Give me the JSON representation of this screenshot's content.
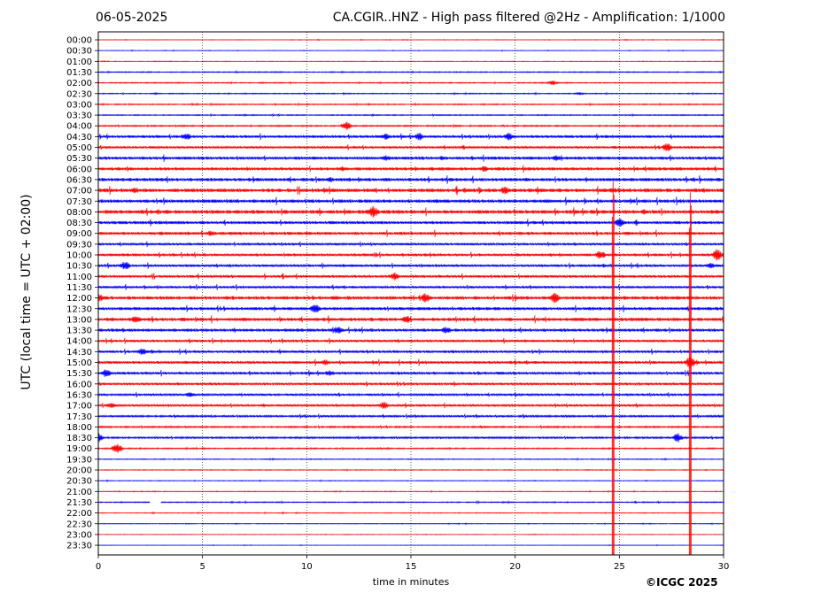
{
  "header": {
    "date": "06-05-2025",
    "title": "CA.CGIR..HNZ - High pass filtered @2Hz - Amplification: 1/1000"
  },
  "footer": {
    "copyright": "©ICGC 2025"
  },
  "colors": {
    "red_trace": "#ff0000",
    "blue_trace": "#0000ff",
    "frame": "#000000",
    "grid": "#000000"
  },
  "chart_data": {
    "type": "line",
    "title": "CA.CGIR..HNZ - High pass filtered @2Hz - Amplification: 1/1000",
    "xlabel": "time in minutes",
    "ylabel": "UTC (local time = UTC + 02:00)",
    "xlim": [
      0,
      30
    ],
    "x_ticks": [
      0,
      5,
      10,
      15,
      20,
      25,
      30
    ],
    "x_tick_labels": [
      "0",
      "5",
      "10",
      "15",
      "20",
      "25",
      "30"
    ],
    "vertical_gridlines": [
      5,
      10,
      15,
      20,
      25
    ],
    "grid": "vertical dotted",
    "row_labels": [
      "00:00",
      "00:30",
      "01:00",
      "01:30",
      "02:00",
      "02:30",
      "03:00",
      "03:30",
      "04:00",
      "04:30",
      "05:00",
      "05:30",
      "06:00",
      "06:30",
      "07:00",
      "07:30",
      "08:00",
      "08:30",
      "09:00",
      "09:30",
      "10:00",
      "10:30",
      "11:00",
      "11:30",
      "12:00",
      "12:30",
      "13:00",
      "13:30",
      "14:00",
      "14:30",
      "15:00",
      "15:30",
      "16:00",
      "16:30",
      "17:00",
      "17:30",
      "18:00",
      "18:30",
      "19:00",
      "19:30",
      "20:00",
      "20:30",
      "21:00",
      "21:30",
      "22:00",
      "22:30",
      "23:00",
      "23:30"
    ],
    "row_colors": [
      "red",
      "blue"
    ],
    "noise_level": [
      0.3,
      0.3,
      0.3,
      0.6,
      0.6,
      0.6,
      0.6,
      0.6,
      0.8,
      1.6,
      1.4,
      1.8,
      1.8,
      2.0,
      2.2,
      2.0,
      2.2,
      1.8,
      1.8,
      1.4,
      1.6,
      1.5,
      1.5,
      1.4,
      2.0,
      1.8,
      2.0,
      1.8,
      1.4,
      1.5,
      1.6,
      1.6,
      1.4,
      1.3,
      1.3,
      1.1,
      0.9,
      1.1,
      0.7,
      0.5,
      0.4,
      0.4,
      0.4,
      0.6,
      0.4,
      0.4,
      0.3,
      0.3
    ],
    "events": [
      {
        "row": 4,
        "x": 21.8,
        "amp": 3
      },
      {
        "row": 5,
        "x": 23.1,
        "amp": 2
      },
      {
        "row": 8,
        "x": 11.9,
        "amp": 6
      },
      {
        "row": 9,
        "x": 4.2,
        "amp": 5
      },
      {
        "row": 9,
        "x": 13.8,
        "amp": 5
      },
      {
        "row": 9,
        "x": 15.4,
        "amp": 5
      },
      {
        "row": 9,
        "x": 19.7,
        "amp": 5
      },
      {
        "row": 10,
        "x": 27.3,
        "amp": 6
      },
      {
        "row": 11,
        "x": 13.8,
        "amp": 4
      },
      {
        "row": 11,
        "x": 22.0,
        "amp": 4
      },
      {
        "row": 12,
        "x": 18.5,
        "amp": 4
      },
      {
        "row": 13,
        "x": 11.1,
        "amp": 4
      },
      {
        "row": 14,
        "x": 1.8,
        "amp": 4
      },
      {
        "row": 14,
        "x": 19.5,
        "amp": 5
      },
      {
        "row": 14,
        "x": 24.7,
        "amp": 4
      },
      {
        "row": 16,
        "x": 13.2,
        "amp": 8
      },
      {
        "row": 16,
        "x": 26.2,
        "amp": 4
      },
      {
        "row": 17,
        "x": 25.0,
        "amp": 6
      },
      {
        "row": 18,
        "x": 5.4,
        "amp": 4
      },
      {
        "row": 20,
        "x": 29.7,
        "amp": 8
      },
      {
        "row": 20,
        "x": 24.1,
        "amp": 6
      },
      {
        "row": 21,
        "x": 1.3,
        "amp": 6
      },
      {
        "row": 21,
        "x": 29.4,
        "amp": 4
      },
      {
        "row": 22,
        "x": 14.2,
        "amp": 5
      },
      {
        "row": 24,
        "x": 0.1,
        "amp": 5
      },
      {
        "row": 24,
        "x": 15.7,
        "amp": 6
      },
      {
        "row": 24,
        "x": 21.9,
        "amp": 7
      },
      {
        "row": 25,
        "x": 10.4,
        "amp": 7
      },
      {
        "row": 26,
        "x": 1.8,
        "amp": 5
      },
      {
        "row": 26,
        "x": 14.8,
        "amp": 5
      },
      {
        "row": 27,
        "x": 11.5,
        "amp": 6
      },
      {
        "row": 27,
        "x": 16.7,
        "amp": 5
      },
      {
        "row": 29,
        "x": 2.1,
        "amp": 5
      },
      {
        "row": 30,
        "x": 28.4,
        "amp": 8
      },
      {
        "row": 30,
        "x": 10.9,
        "amp": 4
      },
      {
        "row": 31,
        "x": 0.4,
        "amp": 6
      },
      {
        "row": 31,
        "x": 11.1,
        "amp": 4
      },
      {
        "row": 33,
        "x": 4.4,
        "amp": 4
      },
      {
        "row": 34,
        "x": 0.6,
        "amp": 4
      },
      {
        "row": 34,
        "x": 13.7,
        "amp": 5
      },
      {
        "row": 37,
        "x": 0.0,
        "amp": 6
      },
      {
        "row": 37,
        "x": 27.8,
        "amp": 6
      },
      {
        "row": 38,
        "x": 0.9,
        "amp": 7
      }
    ],
    "large_events": [
      {
        "x": 24.7,
        "from_row": 14,
        "to_row": 47,
        "color": "red"
      },
      {
        "x": 28.4,
        "from_row": 15,
        "to_row": 47,
        "color": "red"
      }
    ],
    "data_gap": {
      "row": 43,
      "x_from": 2.5,
      "x_to": 3.0
    }
  }
}
